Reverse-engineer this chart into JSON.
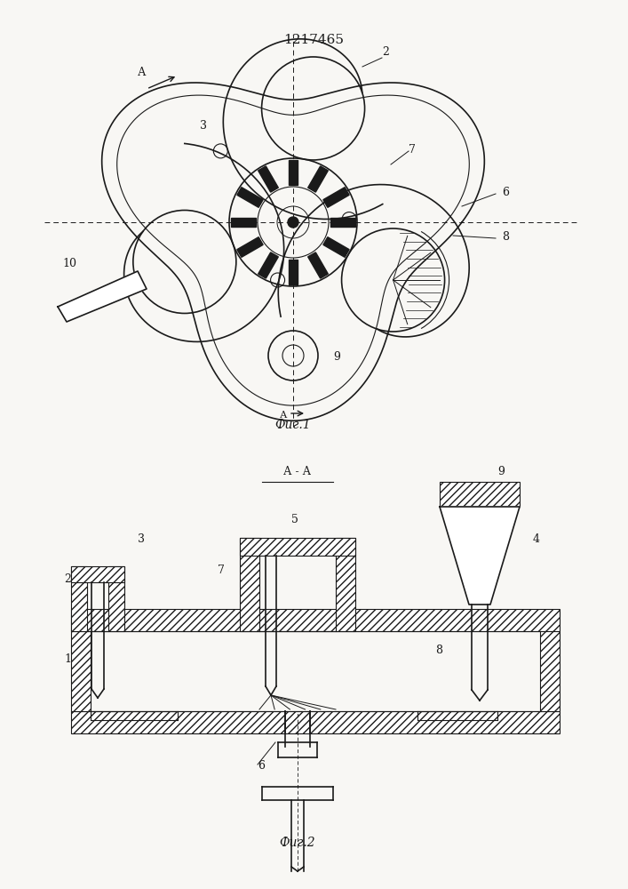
{
  "title": "1217465",
  "bg_color": "#f8f7f4",
  "lc": "#1a1a1a",
  "fig1_caption": "Фиг.1",
  "fig2_caption": "Фиг.2",
  "section_label": "А - А",
  "A_arrow_label": "А"
}
